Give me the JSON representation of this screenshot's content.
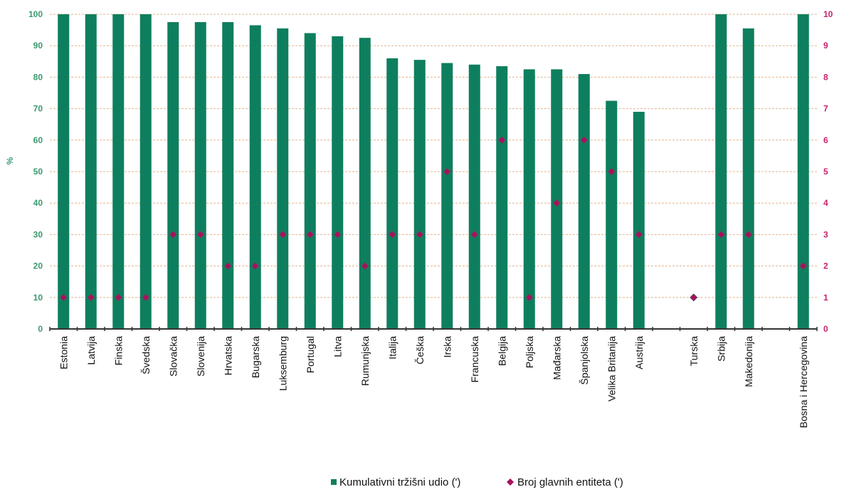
{
  "chart_data": {
    "type": "bar",
    "ylabel": "%",
    "ylim": [
      0,
      100
    ],
    "y2lim": [
      0,
      10
    ],
    "y_ticks": [
      "0",
      "10",
      "20",
      "30",
      "40",
      "50",
      "60",
      "70",
      "80",
      "90",
      "100"
    ],
    "y2_ticks": [
      "0",
      "1",
      "2",
      "3",
      "4",
      "5",
      "6",
      "7",
      "8",
      "9",
      "10"
    ],
    "grid": true,
    "legend_position": "bottom",
    "categories": [
      "Estonia",
      "Latvija",
      "Finska",
      "Švedska",
      "Slovačka",
      "Slovenija",
      "Hrvatska",
      "Bugarska",
      "Luksemburg",
      "Portugal",
      "Litva",
      "Rumunjska",
      "Italija",
      "Češka",
      "Irska",
      "Francuska",
      "Belgija",
      "Poljska",
      "Mađarska",
      "Španjolska",
      "Velika Britanija",
      "Austrija",
      "",
      "Turska",
      "Srbija",
      "Makedonija",
      "",
      "Bosna i Hercegovina"
    ],
    "series": [
      {
        "name": "Kumulativni tržišni udio (')",
        "kind": "bar",
        "axis": "left",
        "color": "#0e7f5e",
        "values": [
          100,
          100,
          100,
          100,
          97.5,
          97.5,
          97.5,
          96.5,
          95.5,
          94,
          93,
          92.5,
          86,
          85.5,
          84.5,
          84,
          83.5,
          82.5,
          82.5,
          81,
          72.5,
          69,
          null,
          null,
          100,
          95.5,
          null,
          100
        ]
      },
      {
        "name": "Broj glavnih entiteta (')",
        "kind": "marker",
        "axis": "right",
        "color": "#a8105f",
        "values": [
          1,
          1,
          1,
          1,
          3,
          3,
          2,
          2,
          3,
          3,
          3,
          2,
          3,
          3,
          5,
          3,
          6,
          1,
          4,
          6,
          5,
          3,
          null,
          1,
          3,
          3,
          null,
          2
        ]
      }
    ]
  },
  "colors": {
    "left_axis": "#3a9a6e",
    "right_axis": "#c8226e",
    "grid": "#e3b48e",
    "x_axis": "#333333"
  }
}
